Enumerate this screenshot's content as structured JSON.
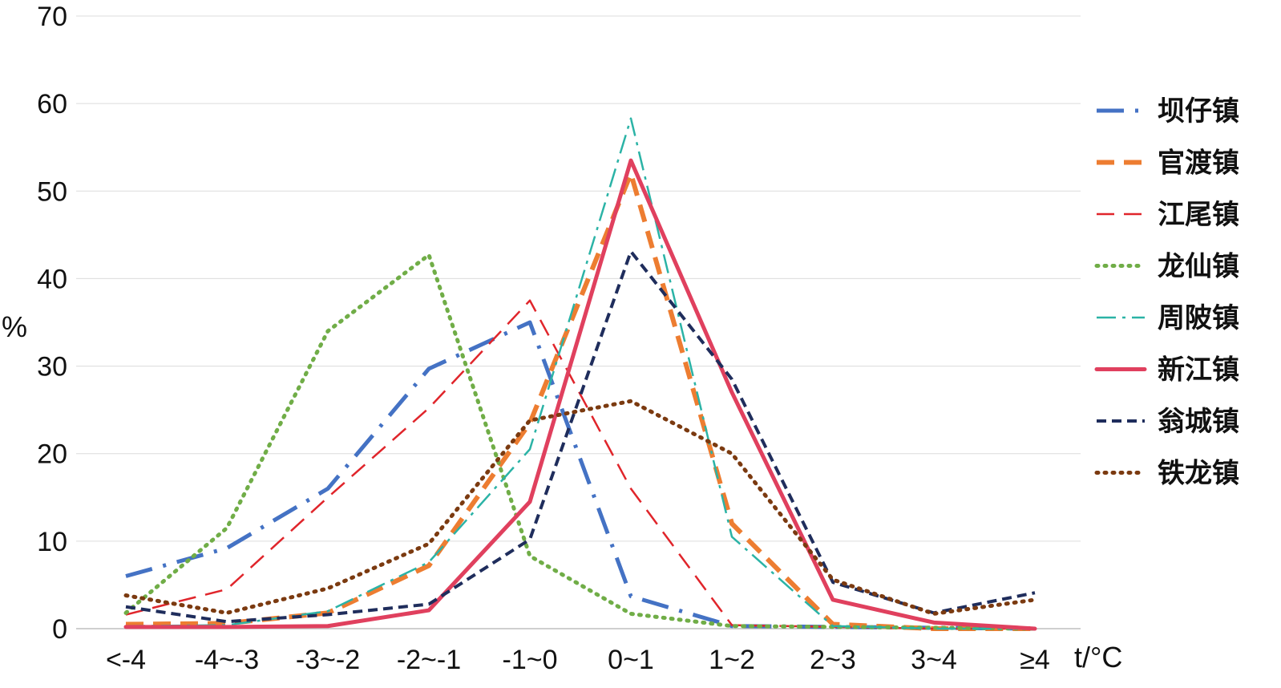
{
  "chart_data": {
    "type": "line",
    "title": "",
    "xlabel": "t/°C",
    "ylabel": "%",
    "categories": [
      "<-4",
      "-4~-3",
      "-3~-2",
      "-2~-1",
      "-1~0",
      "0~1",
      "1~2",
      "2~3",
      "3~4",
      "≥4"
    ],
    "ylim": [
      0,
      70
    ],
    "yticks": [
      0,
      10,
      20,
      30,
      40,
      50,
      60,
      70
    ],
    "grid": true,
    "legend_position": "right",
    "series": [
      {
        "name": "坝仔镇",
        "color": "#4472c4",
        "style": "long-dash-dot",
        "values": [
          6.0,
          9.2,
          16.0,
          29.7,
          35.0,
          3.7,
          0.3,
          0.2,
          0.1,
          0.0
        ]
      },
      {
        "name": "官渡镇",
        "color": "#ed7d31",
        "style": "dash",
        "values": [
          0.5,
          0.6,
          1.8,
          7.2,
          23.5,
          52.0,
          12.0,
          0.5,
          0.0,
          0.0
        ]
      },
      {
        "name": "江尾镇",
        "color": "#e0252b",
        "style": "dash-thin",
        "values": [
          1.6,
          4.5,
          15.0,
          25.2,
          37.5,
          16.0,
          0.4,
          0.2,
          0.0,
          0.0
        ]
      },
      {
        "name": "龙仙镇",
        "color": "#70ad47",
        "style": "dot",
        "values": [
          1.8,
          11.5,
          34.0,
          42.7,
          8.3,
          1.7,
          0.3,
          0.2,
          0.1,
          0.0
        ]
      },
      {
        "name": "周陂镇",
        "color": "#2bb3a6",
        "style": "dash-dot-thin",
        "values": [
          0.3,
          0.4,
          2.0,
          7.6,
          20.5,
          58.3,
          10.5,
          0.3,
          0.0,
          0.0
        ]
      },
      {
        "name": "新江镇",
        "color": "#e0405e",
        "style": "solid",
        "values": [
          0.2,
          0.2,
          0.3,
          2.1,
          14.5,
          53.5,
          27.0,
          3.3,
          0.7,
          0.0
        ]
      },
      {
        "name": "翁城镇",
        "color": "#1f2d5c",
        "style": "dash-short",
        "values": [
          2.5,
          0.8,
          1.6,
          2.8,
          10.2,
          43.1,
          28.5,
          5.3,
          1.8,
          4.1
        ]
      },
      {
        "name": "铁龙镇",
        "color": "#7b3a10",
        "style": "dot",
        "values": [
          3.8,
          1.8,
          4.6,
          9.7,
          23.8,
          26.0,
          20.0,
          5.6,
          1.7,
          3.3
        ]
      }
    ]
  }
}
